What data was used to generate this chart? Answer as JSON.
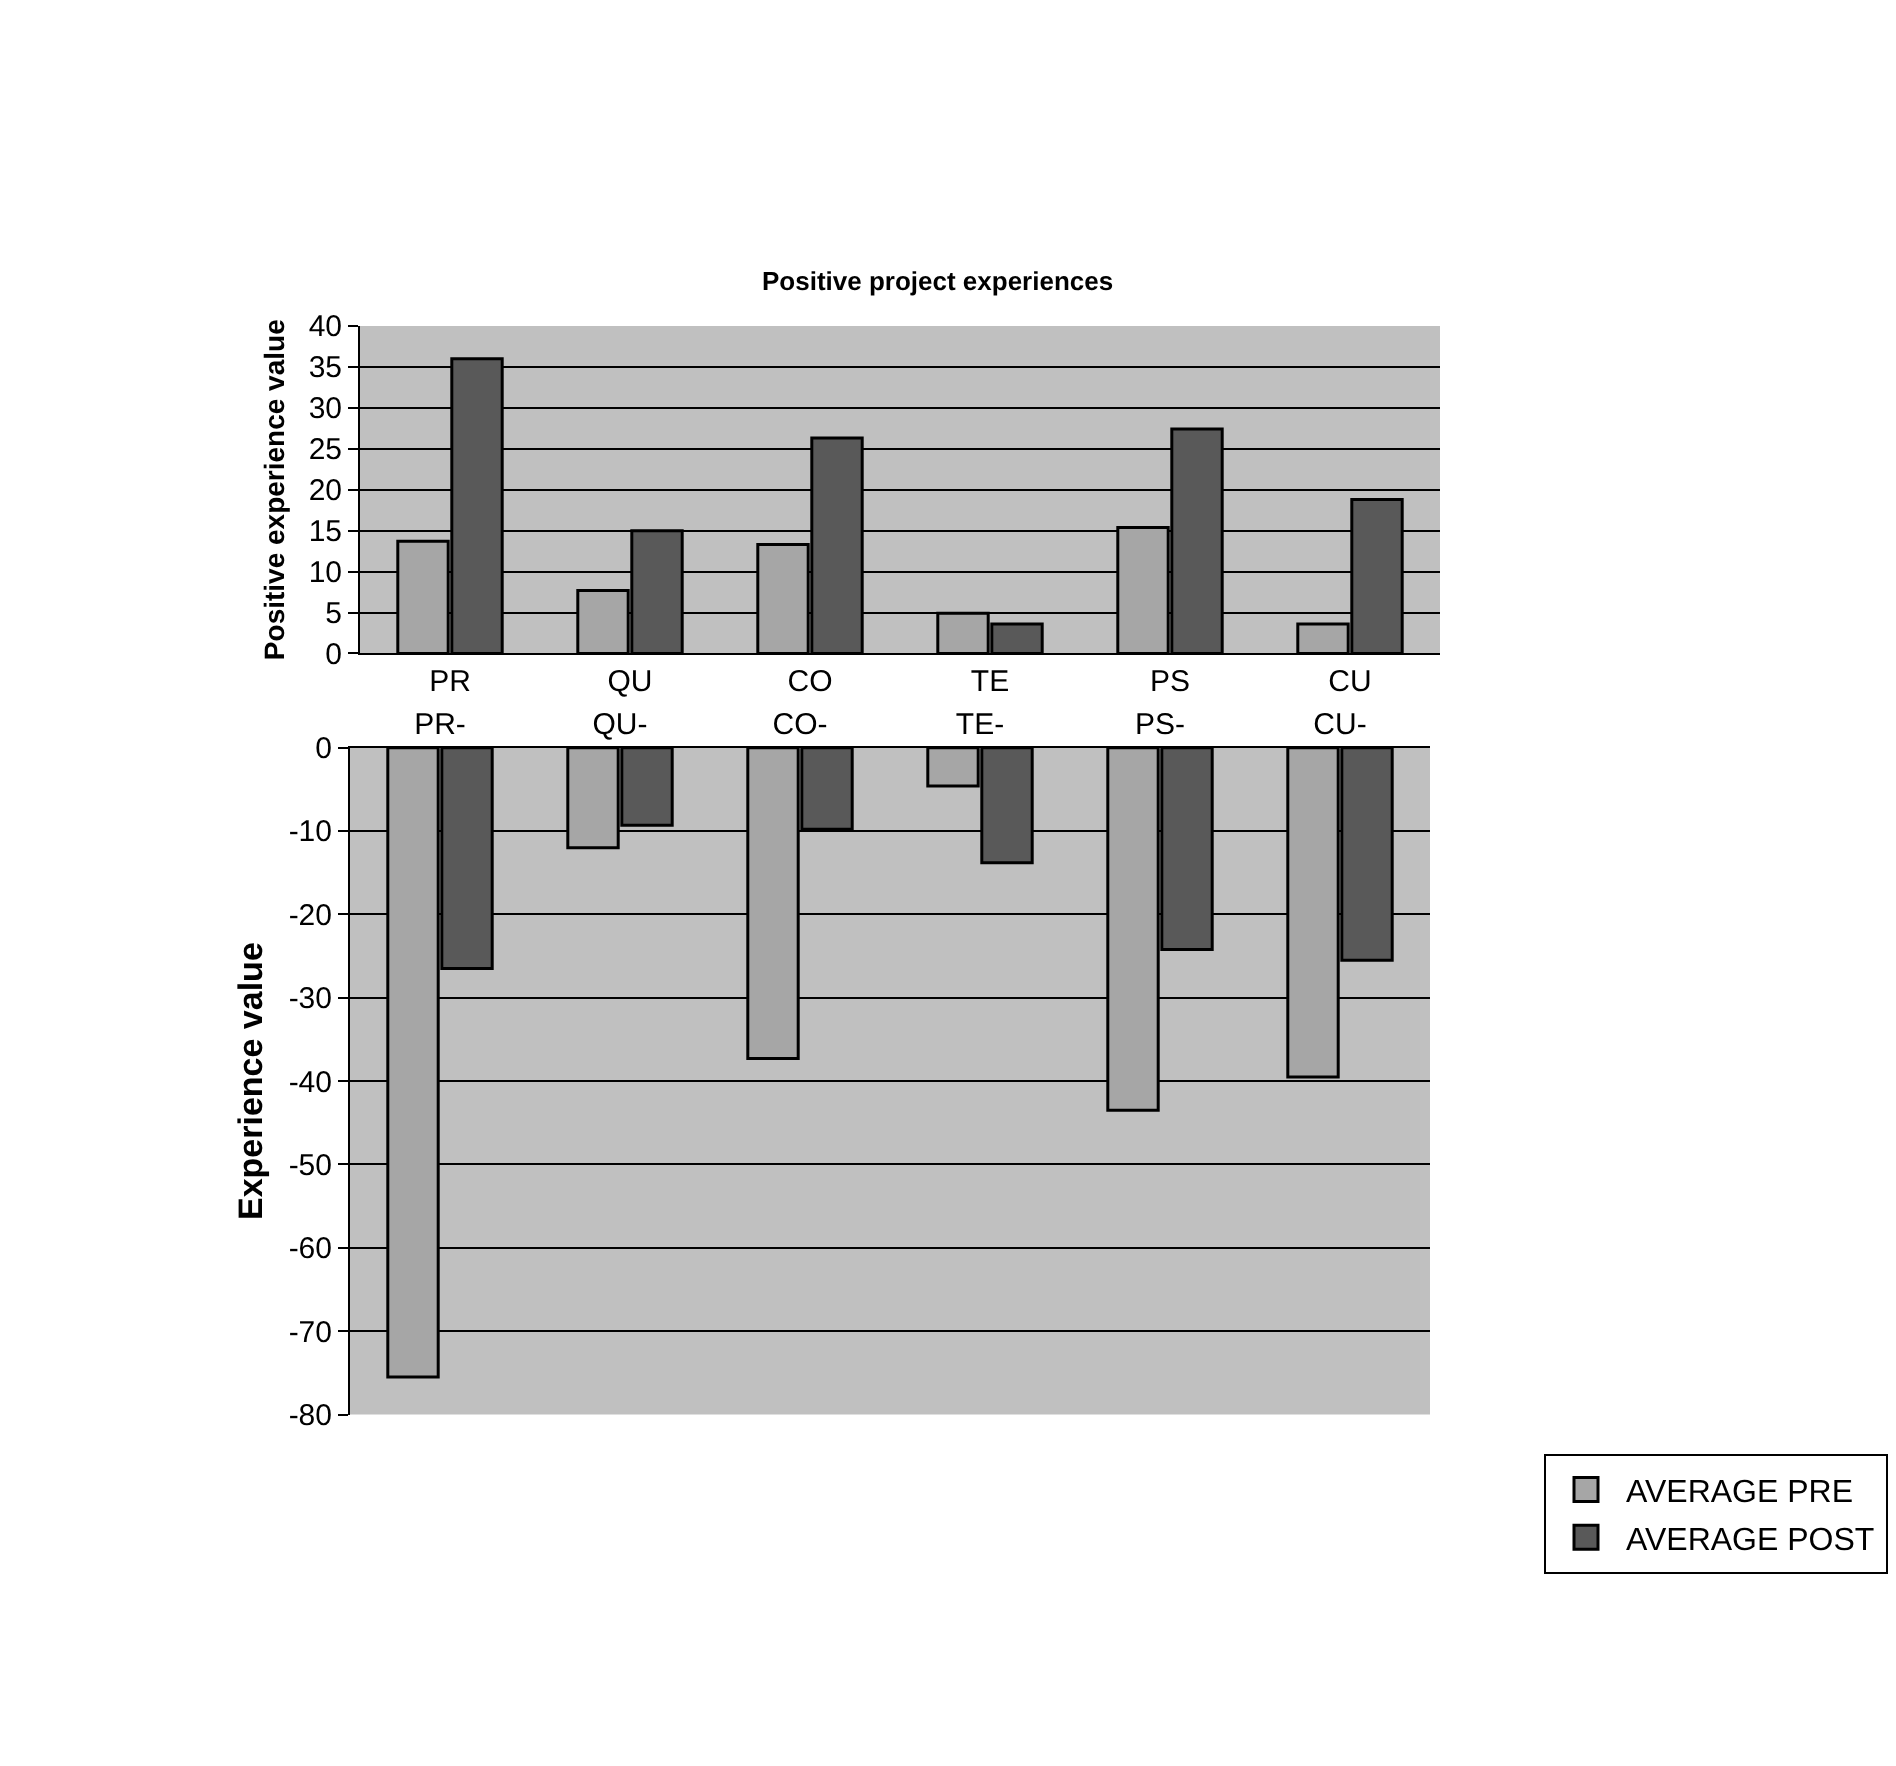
{
  "chart_data": [
    {
      "type": "bar",
      "title": "Positive project experiences",
      "ylabel": "Positive experience value",
      "categories": [
        "PR",
        "QU",
        "CO",
        "TE",
        "PS",
        "CU"
      ],
      "series": [
        {
          "color": "#a6a6a6",
          "values": [
            13.7,
            7.7,
            13.3,
            4.9,
            15.4,
            3.6
          ]
        },
        {
          "color": "#595959",
          "values": [
            36,
            15,
            26.3,
            3.6,
            27.4,
            18.8
          ]
        }
      ],
      "ylim": [
        0,
        40
      ],
      "yticks": [
        0,
        5,
        10,
        15,
        20,
        25,
        30,
        35,
        40
      ],
      "grid": "y",
      "legend": false
    },
    {
      "type": "bar",
      "ylabel": "Experience value",
      "categories": [
        "PR-",
        "QU-",
        "CO-",
        "TE-",
        "PS-",
        "CU-"
      ],
      "series": [
        {
          "name": "AVERAGE PRE",
          "color": "#a6a6a6",
          "values": [
            -75.5,
            -12,
            -37.3,
            -4.6,
            -43.5,
            -39.5
          ]
        },
        {
          "name": "AVERAGE POST",
          "color": "#595959",
          "values": [
            -26.5,
            -9.3,
            -9.8,
            -13.8,
            -24.2,
            -25.5
          ]
        }
      ],
      "ylim": [
        -80,
        0
      ],
      "yticks": [
        -80,
        -70,
        -60,
        -50,
        -40,
        -30,
        -20,
        -10,
        0
      ],
      "grid": "y",
      "legend": "bottom right"
    }
  ]
}
